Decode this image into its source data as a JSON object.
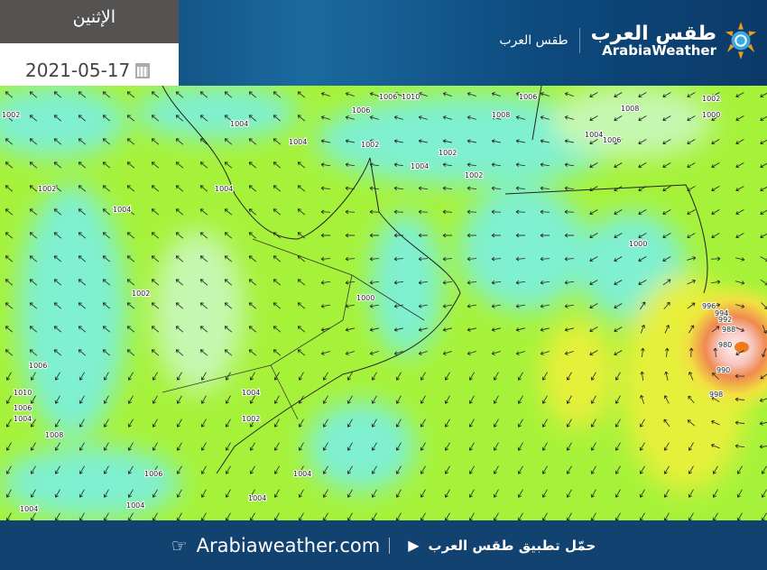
{
  "header": {
    "day": "الإثنين",
    "date": "2021-05-17",
    "calendar_icon": "calendar-icon",
    "brand_sub": "طقس العرب",
    "brand_name_ar": "طقس العرب",
    "brand_name_en": "ArabiaWeather"
  },
  "map": {
    "type": "wind and surface pressure map",
    "colors": {
      "calm": "#c6f7b0",
      "light": "#7ff0d0",
      "moderate": "#a6f23a",
      "strong": "#e6f03a",
      "storm": "#f07a3a"
    },
    "isobar_labels": [
      "1002",
      "1004",
      "1006",
      "1010",
      "1006",
      "1008",
      "1006",
      "1002",
      "1008",
      "1004",
      "1006",
      "1000",
      "1004",
      "1002",
      "1002",
      "1004",
      "1002",
      "1004",
      "1002",
      "1004",
      "1000",
      "1000",
      "1002",
      "1006",
      "1010",
      "1006",
      "1004",
      "1008",
      "1004",
      "1002",
      "1004",
      "1006",
      "1004",
      "1004",
      "1004",
      "996",
      "994",
      "992",
      "988",
      "980",
      "990",
      "998"
    ]
  },
  "footer": {
    "app_text": "حمّل تطبيق طقس العرب",
    "site": "Arabiaweather.com"
  }
}
